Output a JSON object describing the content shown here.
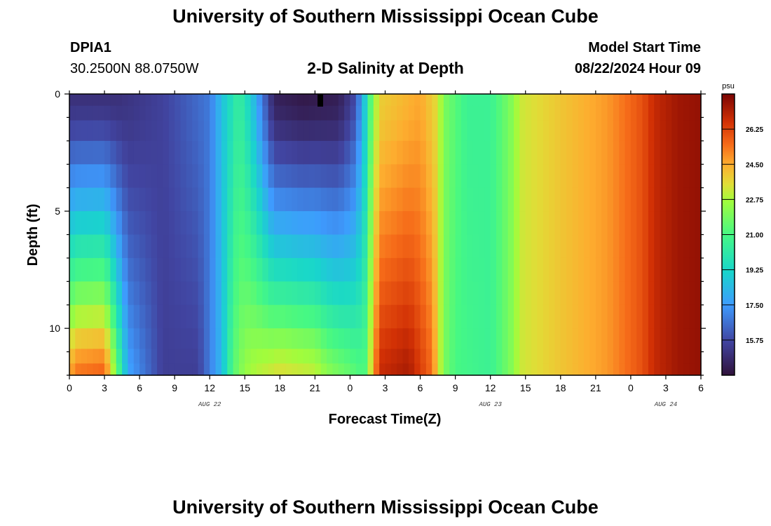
{
  "header": {
    "title": "University of Southern Mississippi Ocean Cube",
    "station_id": "DPIA1",
    "coordinates": "30.2500N  88.0750W",
    "subtitle": "2-D Salinity at Depth",
    "model_start_label": "Model Start Time",
    "model_start_value": "08/22/2024 Hour 09"
  },
  "footer": {
    "title": "University of Southern Mississippi Ocean Cube"
  },
  "chart_data": {
    "type": "heatmap",
    "title": "2-D Salinity at Depth",
    "xlabel": "Forecast Time(Z)",
    "ylabel": "Depth (ft)",
    "x_tick_labels": [
      "0",
      "3",
      "6",
      "9",
      "12",
      "15",
      "18",
      "21",
      "0",
      "3",
      "6",
      "9",
      "12",
      "15",
      "18",
      "21",
      "0",
      "3",
      "6"
    ],
    "date_labels": [
      {
        "label": "AUG 22",
        "at_hour": 12
      },
      {
        "label": "AUG 23",
        "at_hour": 36
      },
      {
        "label": "AUG 24",
        "at_hour": 51
      }
    ],
    "x_range_hours": [
      0,
      54
    ],
    "y_tick_labels": [
      "0",
      "5",
      "10"
    ],
    "y_range_ft": [
      0,
      12
    ],
    "y_inverted": true,
    "colorbar": {
      "unit": "psu",
      "ticks": [
        "15.75",
        "17.50",
        "19.25",
        "21.00",
        "22.75",
        "24.50",
        "26.25"
      ],
      "min": 14.0,
      "max": 28.0
    },
    "time_step_hours": 0.5,
    "depth_levels_ft": [
      0.25,
      0.75,
      1.5,
      2.5,
      3.5,
      4.5,
      5.5,
      6.5,
      7.5,
      8.5,
      9.5,
      10.5,
      11.25,
      11.75
    ],
    "surface_profile_psu": [
      [
        0,
        15.0
      ],
      [
        4,
        15.0
      ],
      [
        8,
        15.6
      ],
      [
        12,
        16.8
      ],
      [
        13,
        18.5
      ],
      [
        14.5,
        20.5
      ],
      [
        15.5,
        19.0
      ],
      [
        17.5,
        14.5
      ],
      [
        20,
        14.2
      ],
      [
        23,
        14.4
      ],
      [
        24.2,
        15.5
      ],
      [
        25,
        17.5
      ],
      [
        25.8,
        21.5
      ],
      [
        26.5,
        23.8
      ],
      [
        30,
        24.6
      ],
      [
        31.5,
        23.5
      ],
      [
        32,
        22.0
      ],
      [
        34,
        20.6
      ],
      [
        36,
        20.6
      ],
      [
        37,
        21.4
      ],
      [
        38,
        22.3
      ],
      [
        38.5,
        23.2
      ],
      [
        42,
        24.0
      ],
      [
        46,
        24.8
      ],
      [
        49,
        26.0
      ],
      [
        50,
        26.8
      ],
      [
        52,
        27.4
      ],
      [
        54,
        27.6
      ]
    ],
    "bottom_profile_psu": [
      [
        0,
        24.5
      ],
      [
        0.5,
        25.5
      ],
      [
        3,
        25.8
      ],
      [
        3.5,
        24.0
      ],
      [
        5,
        17.8
      ],
      [
        8,
        15.5
      ],
      [
        11,
        15.5
      ],
      [
        13,
        18.3
      ],
      [
        14,
        21.3
      ],
      [
        15,
        22.5
      ],
      [
        16,
        23.0
      ],
      [
        18,
        23.6
      ],
      [
        21,
        23.2
      ],
      [
        22,
        22.4
      ],
      [
        24,
        21.6
      ],
      [
        25.2,
        21.0
      ],
      [
        25.8,
        23.5
      ],
      [
        26.5,
        26.8
      ],
      [
        29,
        27.3
      ],
      [
        31,
        25.5
      ],
      [
        32,
        22.0
      ],
      [
        33,
        21.0
      ],
      [
        36,
        20.6
      ],
      [
        37,
        21.4
      ],
      [
        38,
        22.3
      ],
      [
        38.5,
        23.2
      ],
      [
        42,
        24.0
      ],
      [
        46,
        24.8
      ],
      [
        49,
        26.0
      ],
      [
        50,
        26.8
      ],
      [
        52,
        27.4
      ],
      [
        54,
        27.6
      ]
    ]
  }
}
